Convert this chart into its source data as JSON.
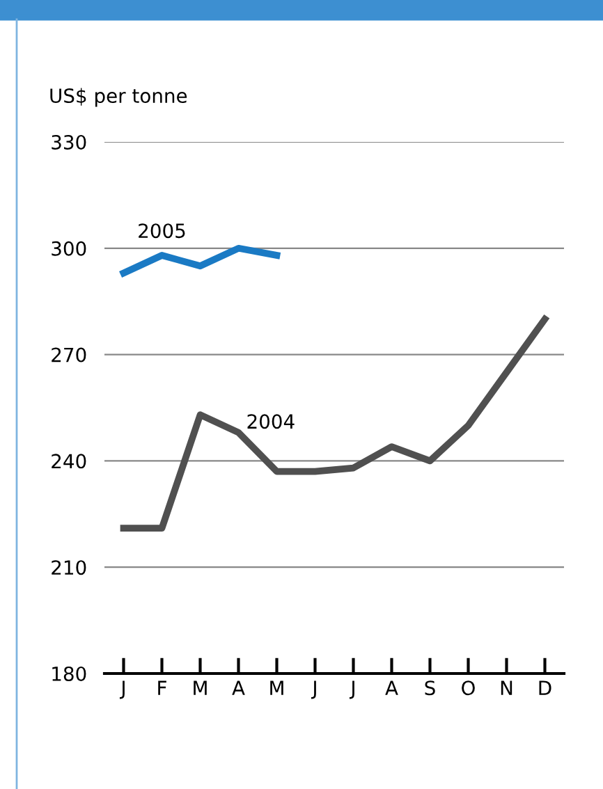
{
  "chart_data": {
    "type": "line",
    "ylabel": "US$ per tonne",
    "categories": [
      "J",
      "F",
      "M",
      "A",
      "M",
      "J",
      "J",
      "A",
      "S",
      "O",
      "N",
      "D"
    ],
    "series": [
      {
        "name": "2005",
        "color": "#1a7ac4",
        "values": [
          293,
          298,
          295,
          300,
          298,
          null,
          null,
          null,
          null,
          null,
          null,
          null
        ]
      },
      {
        "name": "2004",
        "color": "#505050",
        "values": [
          221,
          221,
          253,
          248,
          237,
          237,
          238,
          244,
          240,
          250,
          265,
          280
        ]
      }
    ],
    "ylim": [
      180,
      330
    ],
    "yticks": [
      180,
      210,
      240,
      270,
      300,
      330
    ],
    "grid": "y",
    "legend": false,
    "marker": "none",
    "line_style": "solid"
  }
}
